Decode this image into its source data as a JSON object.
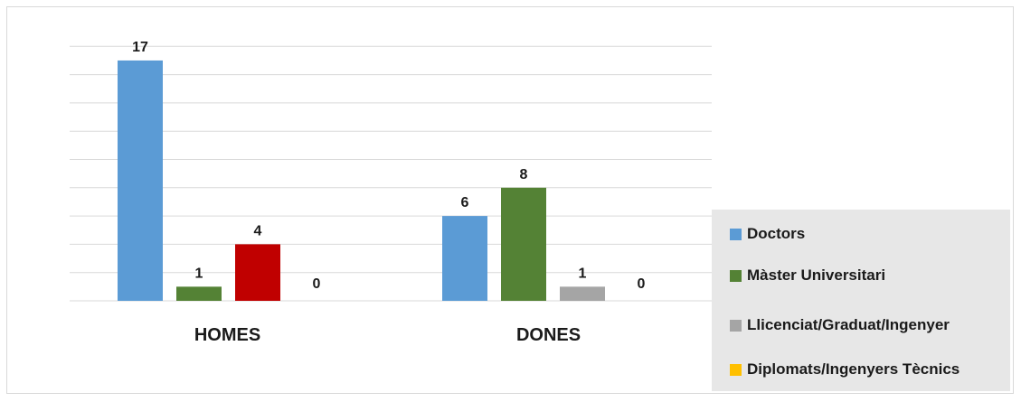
{
  "chart_data": {
    "type": "bar",
    "title": "",
    "xlabel": "",
    "ylabel": "",
    "categories": [
      "HOMES",
      "DONES"
    ],
    "ylim": [
      0,
      18
    ],
    "grid": true,
    "legend_position": "bottom-right",
    "series": [
      {
        "name": "Doctors",
        "color": "#5b9bd5",
        "values": [
          17,
          6
        ]
      },
      {
        "name": "Màster Universitari",
        "color": "#548235",
        "values": [
          1,
          8
        ]
      },
      {
        "name": "Llicenciat/Graduat/Ingenyer",
        "color": "#a5a5a5",
        "values": [
          4,
          1
        ]
      },
      {
        "name": "Diplomats/Ingenyers Tècnics",
        "color": "#ffc000",
        "values": [
          0,
          0
        ]
      }
    ],
    "bar_colors": [
      [
        "#5b9bd5",
        "#548235",
        "#c00000",
        "#ffc000"
      ],
      [
        "#5b9bd5",
        "#548235",
        "#a5a5a5",
        "#ffc000"
      ]
    ],
    "data_labels": [
      [
        "17",
        "1",
        "4",
        "0"
      ],
      [
        "6",
        "8",
        "1",
        "0"
      ]
    ]
  }
}
